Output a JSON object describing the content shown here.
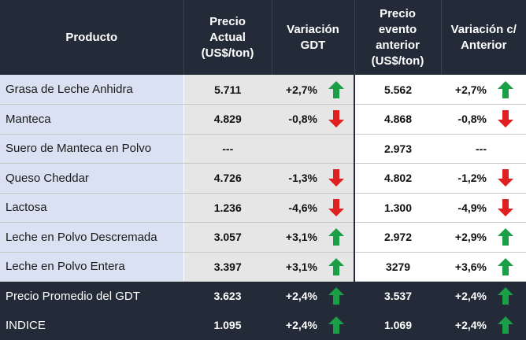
{
  "colors": {
    "header_bg": "#232b38",
    "up_arrow": "#1a9e46",
    "down_arrow": "#e02020"
  },
  "header": {
    "product": "Producto",
    "current_price": [
      "Precio",
      "Actual",
      "(US$/ton)"
    ],
    "gdt_change": [
      "Variación",
      "GDT"
    ],
    "previous_price": [
      "Precio",
      "evento",
      "anterior",
      "(US$/ton)"
    ],
    "change_vs_previous": [
      "Variación c/",
      "Anterior"
    ]
  },
  "rows": [
    {
      "product": "Grasa de Leche Anhidra",
      "price": "5.711",
      "var_gdt": "+2,7%",
      "var_gdt_icon": "arrow-up-icon",
      "prev_price": "5.562",
      "var_prev": "+2,7%",
      "var_prev_icon": "arrow-up-icon"
    },
    {
      "product": "Manteca",
      "price": "4.829",
      "var_gdt": "-0,8%",
      "var_gdt_icon": "arrow-down-icon",
      "prev_price": "4.868",
      "var_prev": "-0,8%",
      "var_prev_icon": "arrow-down-icon"
    },
    {
      "product": "Suero de Manteca en Polvo",
      "price": "---",
      "var_gdt": "",
      "var_gdt_icon": "",
      "prev_price": "2.973",
      "var_prev": "---",
      "var_prev_icon": ""
    },
    {
      "product": "Queso Cheddar",
      "price": "4.726",
      "var_gdt": "-1,3%",
      "var_gdt_icon": "arrow-down-icon",
      "prev_price": "4.802",
      "var_prev": "-1,2%",
      "var_prev_icon": "arrow-down-icon"
    },
    {
      "product": "Lactosa",
      "price": "1.236",
      "var_gdt": "-4,6%",
      "var_gdt_icon": "arrow-down-icon",
      "prev_price": "1.300",
      "var_prev": "-4,9%",
      "var_prev_icon": "arrow-down-icon"
    },
    {
      "product": "Leche en Polvo Descremada",
      "price": "3.057",
      "var_gdt": "+3,1%",
      "var_gdt_icon": "arrow-up-icon",
      "prev_price": "2.972",
      "var_prev": "+2,9%",
      "var_prev_icon": "arrow-up-icon"
    },
    {
      "product": "Leche en Polvo Entera",
      "price": "3.397",
      "var_gdt": "+3,1%",
      "var_gdt_icon": "arrow-up-icon",
      "prev_price": "3279",
      "var_prev": "+3,6%",
      "var_prev_icon": "arrow-up-icon"
    }
  ],
  "summary_rows": [
    {
      "product": "Precio Promedio del GDT",
      "price": "3.623",
      "var_gdt": "+2,4%",
      "var_gdt_icon": "arrow-up-icon",
      "prev_price": "3.537",
      "var_prev": "+2,4%",
      "var_prev_icon": "arrow-up-icon"
    },
    {
      "product": "INDICE",
      "price": "1.095",
      "var_gdt": "+2,4%",
      "var_gdt_icon": "arrow-up-icon",
      "prev_price": "1.069",
      "var_prev": "+2,4%",
      "var_prev_icon": "arrow-up-icon"
    }
  ]
}
